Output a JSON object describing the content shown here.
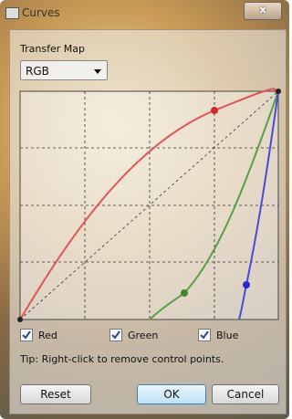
{
  "window": {
    "title": "Curves",
    "close": "x"
  },
  "panel": {
    "label": "Transfer Map",
    "dropdown": "RGB",
    "checkboxes": [
      {
        "label": "Red",
        "checked": true
      },
      {
        "label": "Green",
        "checked": true
      },
      {
        "label": "Blue",
        "checked": true
      }
    ],
    "tip": "Tip: Right-click to remove control points.",
    "buttons": [
      "Reset",
      "OK",
      "Cancel"
    ]
  }
}
